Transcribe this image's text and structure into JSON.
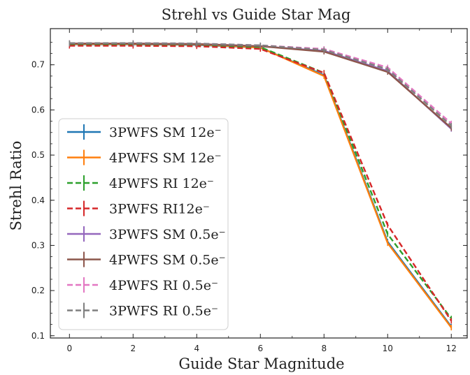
{
  "chart_data": {
    "type": "line",
    "title": "Strehl vs Guide Star Mag",
    "xlabel": "Guide Star Magnitude",
    "ylabel": "Strehl Ratio",
    "xlim": [
      -0.6,
      12.5
    ],
    "ylim": [
      0.095,
      0.78
    ],
    "xticks": [
      0,
      2,
      4,
      6,
      8,
      10,
      12
    ],
    "yticks": [
      0.1,
      0.2,
      0.3,
      0.4,
      0.5,
      0.6,
      0.7
    ],
    "grid": false,
    "legend_position": "center-left",
    "x": [
      0,
      2,
      4,
      6,
      8,
      10,
      12
    ],
    "series": [
      {
        "name": "3PWFS SM 12e⁻",
        "color": "#1f77b4",
        "dash": "solid",
        "values": [
          0.745,
          0.745,
          0.744,
          0.738,
          0.677,
          0.308,
          0.12
        ]
      },
      {
        "name": "4PWFS SM 12e⁻",
        "color": "#ff7f0e",
        "dash": "solid",
        "values": [
          0.746,
          0.746,
          0.745,
          0.738,
          0.675,
          0.305,
          0.118
        ]
      },
      {
        "name": "4PWFS RI 12e⁻",
        "color": "#2ca02c",
        "dash": "dashed",
        "values": [
          0.745,
          0.745,
          0.744,
          0.739,
          0.682,
          0.325,
          0.138
        ]
      },
      {
        "name": "3PWFS RI12e⁻",
        "color": "#d62728",
        "dash": "dashed",
        "values": [
          0.742,
          0.742,
          0.741,
          0.735,
          0.682,
          0.345,
          0.133
        ]
      },
      {
        "name": "3PWFS SM 0.5e⁻",
        "color": "#9467bd",
        "dash": "solid",
        "values": [
          0.747,
          0.747,
          0.746,
          0.741,
          0.731,
          0.686,
          0.558
        ]
      },
      {
        "name": "4PWFS SM 0.5e⁻",
        "color": "#8c564b",
        "dash": "solid",
        "values": [
          0.747,
          0.747,
          0.746,
          0.741,
          0.729,
          0.684,
          0.56
        ]
      },
      {
        "name": "4PWFS RI 0.5e⁻",
        "color": "#e377c2",
        "dash": "dashed",
        "values": [
          0.748,
          0.748,
          0.747,
          0.743,
          0.735,
          0.694,
          0.57
        ]
      },
      {
        "name": "3PWFS RI 0.5e⁻",
        "color": "#7f7f7f",
        "dash": "dashed",
        "values": [
          0.748,
          0.748,
          0.747,
          0.743,
          0.733,
          0.69,
          0.565
        ]
      }
    ]
  }
}
